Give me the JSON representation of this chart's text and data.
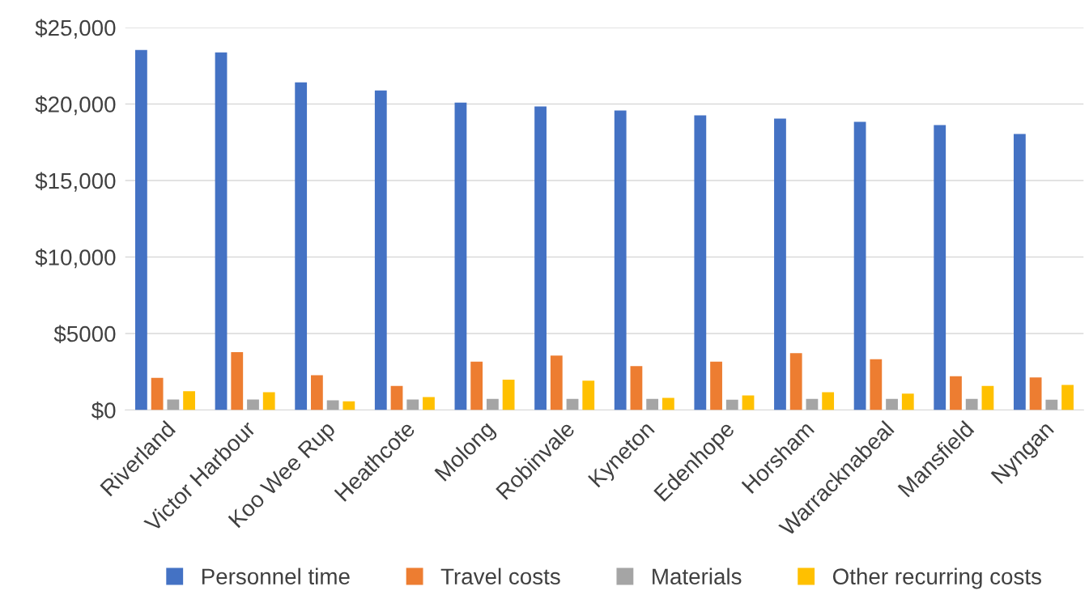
{
  "chart_data": {
    "type": "bar",
    "categories": [
      "Riverland",
      "Victor Harbour",
      "Koo Wee Rup",
      "Heathcote",
      "Molong",
      "Robinvale",
      "Kyneton",
      "Edenhope",
      "Horsham",
      "Warracknabeal",
      "Mansfield",
      "Nyngan"
    ],
    "series": [
      {
        "name": "Personnel time",
        "color": "#4472c4",
        "values": [
          23530,
          23370,
          21420,
          20890,
          20100,
          19840,
          19580,
          19260,
          19050,
          18840,
          18630,
          18050
        ]
      },
      {
        "name": "Travel costs",
        "color": "#ed7d31",
        "values": [
          2100,
          3790,
          2270,
          1580,
          3160,
          3560,
          2870,
          3160,
          3720,
          3320,
          2210,
          2130
        ]
      },
      {
        "name": "Materials",
        "color": "#a5a5a5",
        "values": [
          690,
          690,
          630,
          690,
          730,
          730,
          730,
          670,
          730,
          730,
          730,
          670
        ]
      },
      {
        "name": "Other recurring costs",
        "color": "#ffc000",
        "values": [
          1230,
          1170,
          570,
          850,
          1980,
          1920,
          790,
          950,
          1170,
          1070,
          1580,
          1640
        ]
      }
    ],
    "ylim": [
      0,
      25000
    ],
    "yticks": [
      {
        "value": 0,
        "label": "$0"
      },
      {
        "value": 5000,
        "label": "$5000"
      },
      {
        "value": 10000,
        "label": "$10,000"
      },
      {
        "value": 15000,
        "label": "$15,000"
      },
      {
        "value": 20000,
        "label": "$20,000"
      },
      {
        "value": 25000,
        "label": "$25,000"
      }
    ],
    "grid": "y",
    "legend": "bottom"
  }
}
